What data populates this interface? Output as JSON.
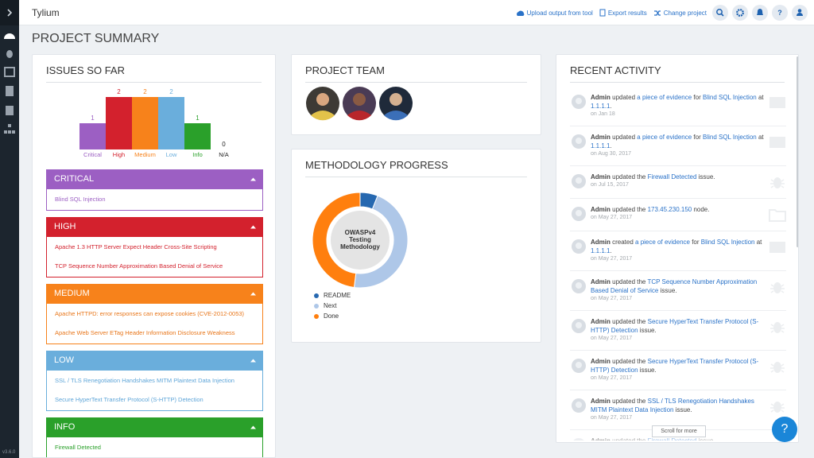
{
  "topbar": {
    "brand": "Tylium",
    "links": [
      "Upload output from tool",
      "Export results",
      "Change project"
    ],
    "help_glyph": "?"
  },
  "sidebar": {
    "version": "v3.6.0"
  },
  "page_title": "PROJECT SUMMARY",
  "issues": {
    "title": "ISSUES SO FAR",
    "chart": {
      "categories": [
        "Critical",
        "High",
        "Medium",
        "Low",
        "Info",
        "N/A"
      ],
      "values": [
        1,
        2,
        2,
        2,
        1,
        0
      ],
      "colors": [
        "#9c5fc3",
        "#d3212d",
        "#f7821b",
        "#6aaedc",
        "#2aa02a",
        "#222222"
      ]
    },
    "groups": [
      {
        "title": "CRITICAL",
        "color": "#9c5fc3",
        "text_color": "#9c5fc3",
        "items": [
          "Blind SQL Injection"
        ]
      },
      {
        "title": "HIGH",
        "color": "#d3212d",
        "text_color": "#d3212d",
        "items": [
          "Apache 1.3 HTTP Server Expect Header Cross-Site Scripting",
          "TCP Sequence Number Approximation Based Denial of Service"
        ]
      },
      {
        "title": "MEDIUM",
        "color": "#f7821b",
        "text_color": "#e8761a",
        "items": [
          "Apache HTTPD: error responses can expose cookies (CVE-2012-0053)",
          "Apache Web Server ETag Header Information Disclosure Weakness"
        ]
      },
      {
        "title": "LOW",
        "color": "#6aaedc",
        "text_color": "#5ea5d8",
        "items": [
          "SSL / TLS Renegotiation Handshakes MITM Plaintext Data Injection",
          "Secure HyperText Transfer Protocol (S-HTTP) Detection"
        ]
      },
      {
        "title": "INFO",
        "color": "#2aa02a",
        "text_color": "#2aa02a",
        "items": [
          "Firewall Detected"
        ]
      }
    ]
  },
  "team": {
    "title": "PROJECT TEAM"
  },
  "methodology": {
    "title": "METHODOLOGY PROGRESS",
    "name": "OWASPv4 Testing Methodology",
    "segments": {
      "names": [
        "README",
        "Next",
        "Done"
      ],
      "values": [
        6,
        46,
        48
      ],
      "colors": [
        "#2668b0",
        "#aec7e8",
        "#ff7f0e"
      ]
    }
  },
  "activity": {
    "title": "RECENT ACTIVITY",
    "scroll_label": "Scroll for more",
    "items": [
      {
        "actor": "Admin",
        "parts": [
          " updated ",
          "a piece of evidence",
          " for ",
          "Blind SQL Injection",
          " at ",
          "1.1.1.1",
          "."
        ],
        "links": [
          1,
          3,
          5
        ],
        "date": "on Jan 18",
        "icon": "evidence"
      },
      {
        "actor": "Admin",
        "parts": [
          " updated ",
          "a piece of evidence",
          " for ",
          "Blind SQL Injection",
          " at ",
          "1.1.1.1",
          "."
        ],
        "links": [
          1,
          3,
          5
        ],
        "date": "on Aug 30, 2017",
        "icon": "evidence"
      },
      {
        "actor": "Admin",
        "parts": [
          " updated the ",
          "Firewall Detected",
          " issue."
        ],
        "links": [
          1
        ],
        "date": "on Jul 15, 2017",
        "icon": "issue"
      },
      {
        "actor": "Admin",
        "parts": [
          " updated the ",
          "173.45.230.150",
          " node."
        ],
        "links": [
          1
        ],
        "date": "on May 27, 2017",
        "icon": "node"
      },
      {
        "actor": "Admin",
        "parts": [
          " created ",
          "a piece of evidence",
          " for ",
          "Blind SQL Injection",
          " at ",
          "1.1.1.1",
          "."
        ],
        "links": [
          1,
          3,
          5
        ],
        "date": "on May 27, 2017",
        "icon": "evidence"
      },
      {
        "actor": "Admin",
        "parts": [
          " updated the ",
          "TCP Sequence Number Approximation Based Denial of Service",
          " issue."
        ],
        "links": [
          1
        ],
        "date": "on May 27, 2017",
        "icon": "issue"
      },
      {
        "actor": "Admin",
        "parts": [
          " updated the ",
          "Secure HyperText Transfer Protocol (S-HTTP) Detection",
          " issue."
        ],
        "links": [
          1
        ],
        "date": "on May 27, 2017",
        "icon": "issue"
      },
      {
        "actor": "Admin",
        "parts": [
          " updated the ",
          "Secure HyperText Transfer Protocol (S-HTTP) Detection",
          " issue."
        ],
        "links": [
          1
        ],
        "date": "on May 27, 2017",
        "icon": "issue"
      },
      {
        "actor": "Admin",
        "parts": [
          " updated the ",
          "SSL / TLS Renegotiation Handshakes MITM Plaintext Data Injection",
          " issue."
        ],
        "links": [
          1
        ],
        "date": "on May 27, 2017",
        "icon": "issue"
      },
      {
        "actor": "Admin",
        "parts": [
          " updated the ",
          "Firewall Detected",
          " issue."
        ],
        "links": [
          1
        ],
        "icon": "issue"
      }
    ]
  },
  "help_button": "?"
}
